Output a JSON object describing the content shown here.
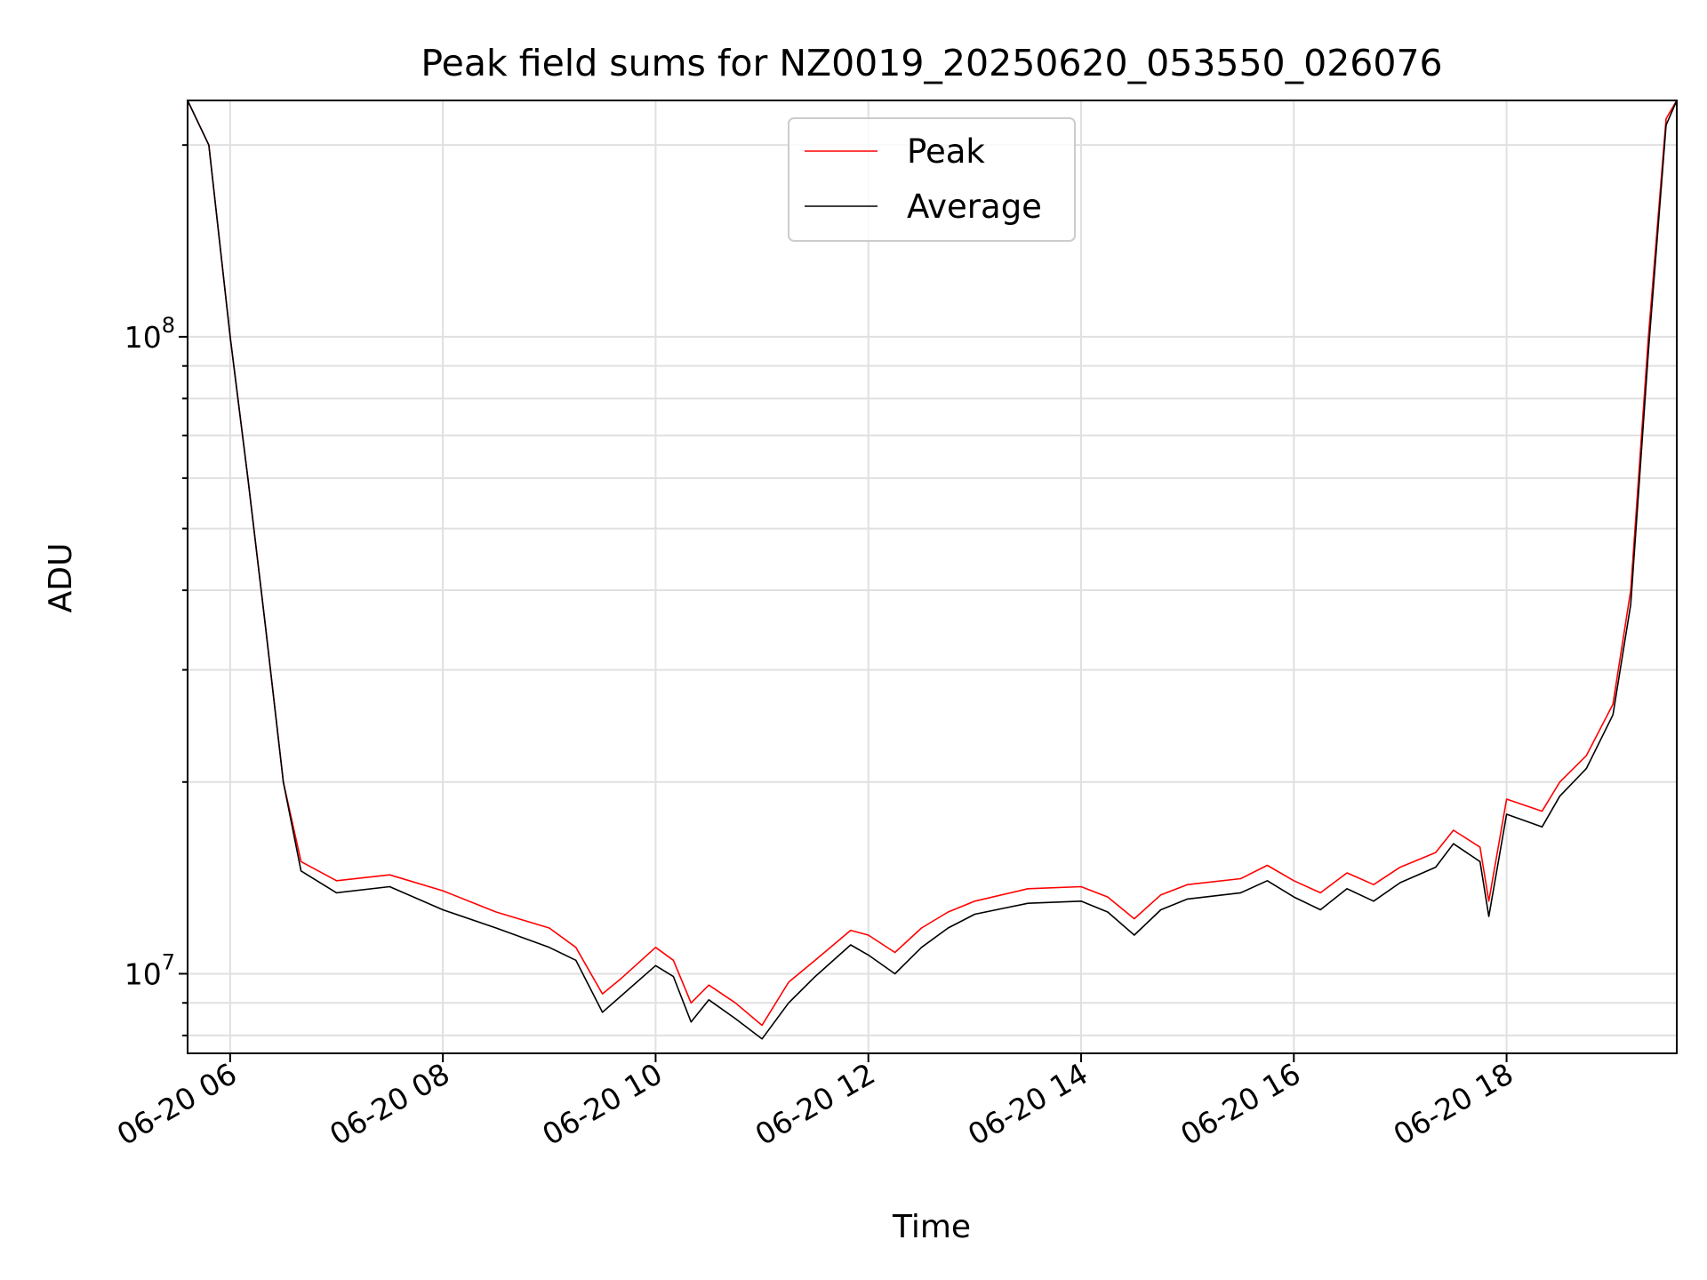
{
  "chart_data": {
    "type": "line",
    "title": "Peak field sums for NZ0019_20250620_053550_026076",
    "xlabel": "Time",
    "ylabel": "ADU",
    "yscale": "log",
    "x_tick_labels": [
      "06-20 06",
      "06-20 08",
      "06-20 10",
      "06-20 12",
      "06-20 14",
      "06-20 16",
      "06-20 18"
    ],
    "y_tick_labels": [
      {
        "base": "10",
        "exp": "7",
        "value": 10000000
      },
      {
        "base": "10",
        "exp": "8",
        "value": 100000000
      }
    ],
    "xlim": [
      "2025-06-20 05:36",
      "2025-06-20 19:36"
    ],
    "ylim": [
      7500000,
      235000000
    ],
    "grid": true,
    "legend_position": "upper center",
    "colors": {
      "peak": "#ff0000",
      "average": "#000000",
      "grid": "#e0e0e0"
    },
    "x": [
      "2025-06-20 05:36",
      "2025-06-20 05:48",
      "2025-06-20 06:00",
      "2025-06-20 06:10",
      "2025-06-20 06:20",
      "2025-06-20 06:30",
      "2025-06-20 06:40",
      "2025-06-20 07:00",
      "2025-06-20 07:30",
      "2025-06-20 08:00",
      "2025-06-20 08:30",
      "2025-06-20 09:00",
      "2025-06-20 09:15",
      "2025-06-20 09:30",
      "2025-06-20 09:40",
      "2025-06-20 10:00",
      "2025-06-20 10:10",
      "2025-06-20 10:20",
      "2025-06-20 10:30",
      "2025-06-20 10:45",
      "2025-06-20 11:00",
      "2025-06-20 11:15",
      "2025-06-20 11:30",
      "2025-06-20 11:50",
      "2025-06-20 12:00",
      "2025-06-20 12:15",
      "2025-06-20 12:30",
      "2025-06-20 12:45",
      "2025-06-20 13:00",
      "2025-06-20 13:30",
      "2025-06-20 14:00",
      "2025-06-20 14:15",
      "2025-06-20 14:30",
      "2025-06-20 14:45",
      "2025-06-20 15:00",
      "2025-06-20 15:30",
      "2025-06-20 15:45",
      "2025-06-20 16:00",
      "2025-06-20 16:15",
      "2025-06-20 16:30",
      "2025-06-20 16:45",
      "2025-06-20 17:00",
      "2025-06-20 17:20",
      "2025-06-20 17:30",
      "2025-06-20 17:45",
      "2025-06-20 17:50",
      "2025-06-20 18:00",
      "2025-06-20 18:20",
      "2025-06-20 18:30",
      "2025-06-20 18:45",
      "2025-06-20 19:00",
      "2025-06-20 19:10",
      "2025-06-20 19:20",
      "2025-06-20 19:30",
      "2025-06-20 19:36"
    ],
    "series": [
      {
        "name": "Peak",
        "values": [
          240000000,
          200000000,
          100000000,
          60000000,
          35000000,
          20000000,
          15000000,
          14000000,
          14300000,
          13500000,
          12500000,
          11800000,
          11000000,
          9300000,
          9800000,
          11000000,
          10500000,
          9000000,
          9600000,
          9000000,
          8300000,
          9700000,
          10500000,
          11700000,
          11500000,
          10800000,
          11800000,
          12500000,
          13000000,
          13600000,
          13700000,
          13200000,
          12200000,
          13300000,
          13800000,
          14100000,
          14800000,
          14000000,
          13400000,
          14400000,
          13800000,
          14700000,
          15500000,
          16800000,
          15800000,
          13000000,
          18800000,
          18000000,
          20000000,
          22000000,
          26500000,
          40000000,
          100000000,
          220000000,
          240000000
        ]
      },
      {
        "name": "Average",
        "values": [
          240000000,
          200000000,
          100000000,
          60000000,
          35000000,
          20000000,
          14500000,
          13400000,
          13700000,
          12600000,
          11800000,
          11000000,
          10500000,
          8700000,
          9200000,
          10300000,
          9900000,
          8400000,
          9100000,
          8500000,
          7900000,
          9000000,
          9900000,
          11100000,
          10700000,
          10000000,
          11000000,
          11800000,
          12400000,
          12900000,
          13000000,
          12500000,
          11500000,
          12600000,
          13100000,
          13400000,
          14000000,
          13200000,
          12600000,
          13600000,
          13000000,
          13900000,
          14700000,
          16000000,
          15000000,
          12300000,
          17800000,
          17000000,
          19000000,
          21000000,
          25500000,
          38000000,
          95000000,
          215000000,
          240000000
        ]
      }
    ]
  }
}
